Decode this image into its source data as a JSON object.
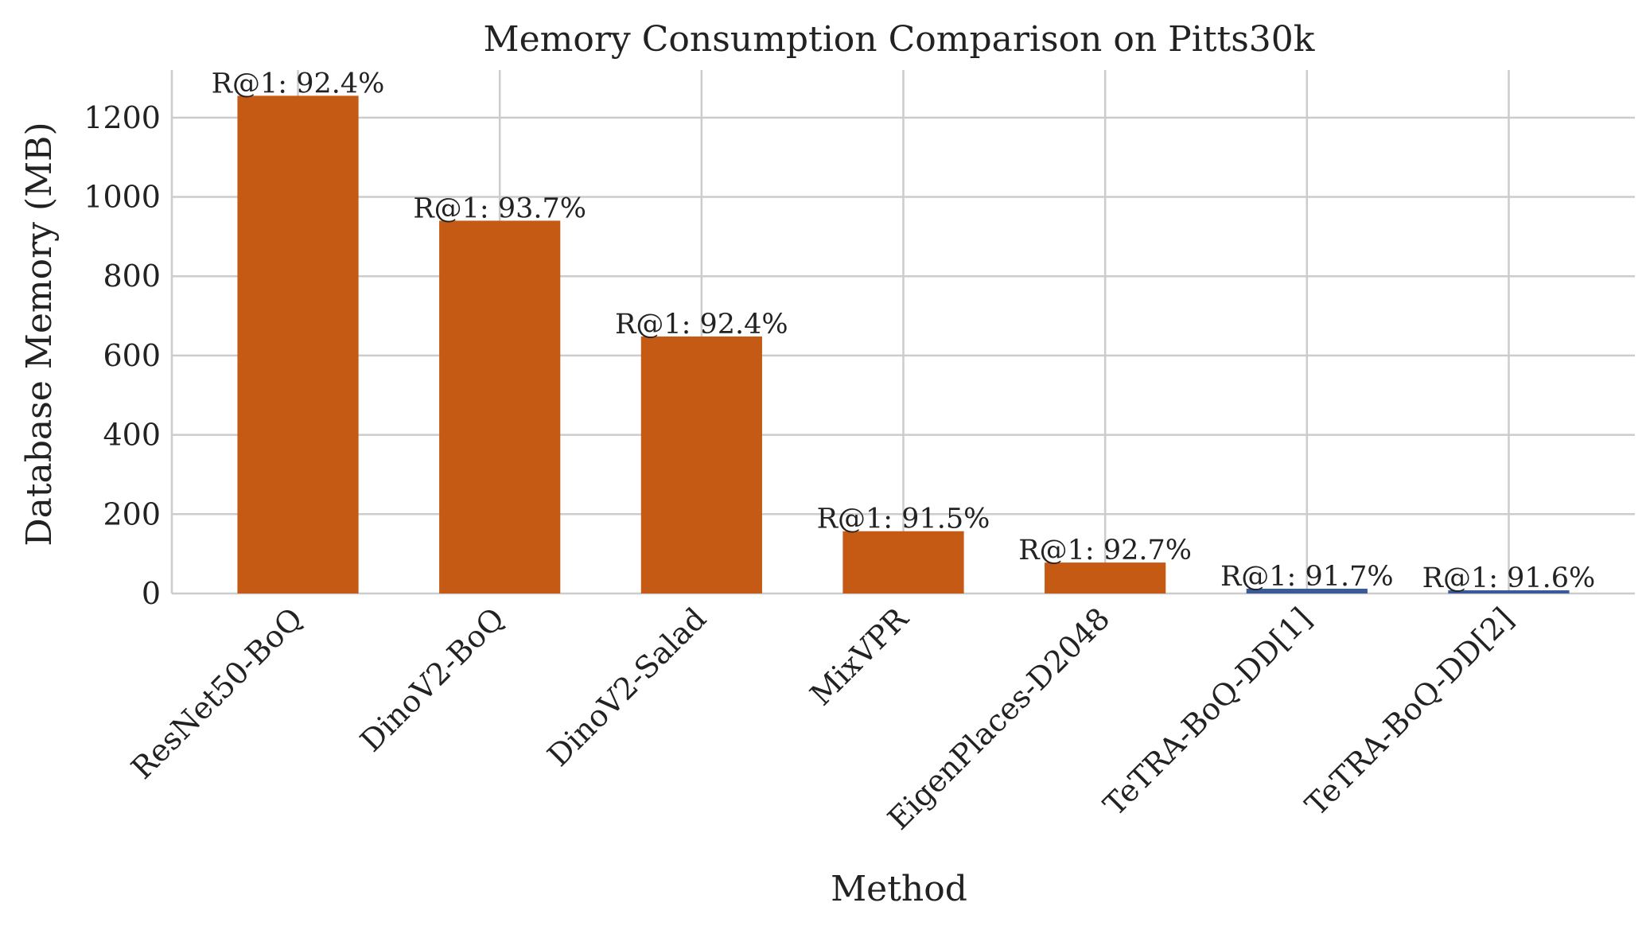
{
  "chart_data": {
    "type": "bar",
    "title": "Memory Consumption Comparison on Pitts30k",
    "xlabel": "Method",
    "ylabel": "Database Memory (MB)",
    "ylim": [
      0,
      1320
    ],
    "yticks": [
      0,
      200,
      400,
      600,
      800,
      1000,
      1200
    ],
    "grid": true,
    "categories": [
      "ResNet50-BoQ",
      "DinoV2-BoQ",
      "DinoV2-Salad",
      "MixVPR",
      "EigenPlaces-D2048",
      "TeTRA-BoQ-DD[1]",
      "TeTRA-BoQ-DD[2]"
    ],
    "values": [
      1255,
      940,
      648,
      157,
      78,
      12,
      6
    ],
    "bar_labels": [
      "R@1: 92.4%",
      "R@1: 93.7%",
      "R@1: 92.4%",
      "R@1: 91.5%",
      "R@1: 92.7%",
      "R@1: 91.7%",
      "R@1: 91.6%"
    ],
    "bar_colors": [
      "#c45a13",
      "#c45a13",
      "#c45a13",
      "#c45a13",
      "#c45a13",
      "#3a5a98",
      "#3a5a98"
    ]
  }
}
